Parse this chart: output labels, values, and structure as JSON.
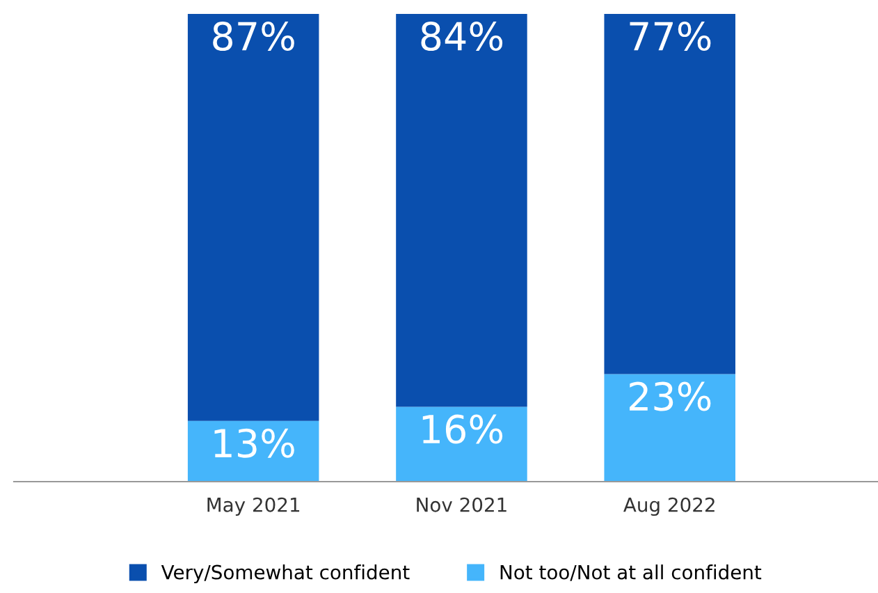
{
  "chart_data": {
    "type": "bar",
    "stacked": true,
    "categories": [
      "May 2021",
      "Nov 2021",
      "Aug 2022"
    ],
    "series": [
      {
        "name": "Not too/Not at all confident",
        "color": "#45b5fb",
        "values": [
          13,
          16,
          23
        ],
        "value_labels": [
          "13%",
          "16%",
          "23%"
        ]
      },
      {
        "name": "Very/Somewhat confident",
        "color": "#0a4fae",
        "values": [
          87,
          84,
          77
        ],
        "value_labels": [
          "87%",
          "84%",
          "77%"
        ]
      }
    ],
    "legend": "bottom",
    "grid": false
  }
}
